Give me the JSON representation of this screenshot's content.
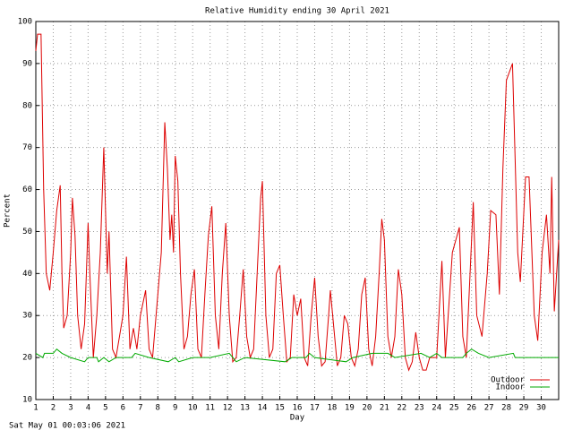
{
  "chart_data": {
    "type": "line",
    "title": "Relative Humidity ending 30 April 2021",
    "y_label": "Percent",
    "x_label": "Day",
    "footer": "Sat May 01 00:03:06 2021",
    "xlim": [
      1,
      31
    ],
    "xticks": [
      1,
      2,
      3,
      4,
      5,
      6,
      7,
      8,
      9,
      10,
      11,
      12,
      13,
      14,
      15,
      16,
      17,
      18,
      19,
      20,
      21,
      22,
      23,
      24,
      25,
      26,
      27,
      28,
      29,
      30
    ],
    "ylim": [
      10,
      100
    ],
    "yticks": [
      10,
      20,
      30,
      40,
      50,
      60,
      70,
      80,
      90,
      100
    ],
    "grid": true,
    "legend": "lower right",
    "series": [
      {
        "name": "Outdoor",
        "color": "#dd0000",
        "x": [
          1.0,
          1.1,
          1.3,
          1.45,
          1.6,
          1.8,
          2.0,
          2.2,
          2.4,
          2.5,
          2.6,
          2.8,
          3.0,
          3.1,
          3.25,
          3.4,
          3.6,
          3.8,
          4.0,
          4.1,
          4.3,
          4.5,
          4.7,
          4.9,
          5.1,
          5.2,
          5.4,
          5.6,
          5.8,
          6.0,
          6.2,
          6.4,
          6.6,
          6.8,
          7.0,
          7.3,
          7.5,
          7.7,
          7.9,
          8.2,
          8.4,
          8.55,
          8.7,
          8.8,
          8.9,
          9.0,
          9.15,
          9.3,
          9.5,
          9.7,
          9.9,
          10.1,
          10.3,
          10.5,
          10.7,
          10.9,
          11.1,
          11.3,
          11.5,
          11.7,
          11.9,
          12.1,
          12.3,
          12.5,
          12.7,
          12.9,
          13.1,
          13.3,
          13.5,
          13.7,
          13.9,
          14.0,
          14.2,
          14.4,
          14.6,
          14.8,
          15.0,
          15.2,
          15.4,
          15.6,
          15.8,
          16.0,
          16.2,
          16.4,
          16.6,
          16.8,
          17.0,
          17.2,
          17.4,
          17.6,
          17.8,
          17.9,
          18.1,
          18.3,
          18.5,
          18.7,
          18.9,
          19.1,
          19.3,
          19.5,
          19.7,
          19.9,
          20.1,
          20.3,
          20.5,
          20.7,
          20.85,
          21.0,
          21.2,
          21.4,
          21.6,
          21.8,
          22.0,
          22.2,
          22.4,
          22.6,
          22.8,
          23.0,
          23.2,
          23.4,
          23.6,
          24.0,
          24.3,
          24.5,
          24.9,
          25.3,
          25.5,
          25.7,
          26.1,
          26.3,
          26.6,
          26.9,
          27.1,
          27.4,
          27.6,
          27.8,
          28.0,
          28.35,
          28.65,
          28.8,
          29.1,
          29.3,
          29.6,
          29.8,
          30.05,
          30.3,
          30.5,
          30.6,
          30.75,
          31.0
        ],
        "values": [
          93,
          97,
          97,
          60,
          40,
          36,
          45,
          55,
          61,
          40,
          27,
          30,
          45,
          58,
          49,
          30,
          22,
          28,
          52,
          40,
          20,
          30,
          45,
          70,
          40,
          50,
          22,
          20,
          25,
          30,
          44,
          22,
          27,
          22,
          30,
          36,
          22,
          20,
          30,
          45,
          76,
          65,
          48,
          54,
          45,
          68,
          62,
          40,
          22,
          25,
          35,
          41,
          22,
          20,
          35,
          49,
          56,
          30,
          22,
          40,
          52,
          30,
          19,
          20,
          30,
          41,
          25,
          20,
          22,
          40,
          58,
          62,
          30,
          20,
          22,
          40,
          42,
          30,
          19,
          20,
          35,
          30,
          34,
          20,
          18,
          30,
          39,
          25,
          18,
          19,
          30,
          36,
          27,
          18,
          20,
          30,
          28,
          20,
          18,
          22,
          35,
          39,
          22,
          18,
          25,
          40,
          53,
          48,
          25,
          20,
          25,
          41,
          35,
          20,
          17,
          19,
          26,
          20,
          17,
          17,
          20,
          20,
          43,
          20,
          45,
          51,
          25,
          20,
          57,
          30,
          25,
          40,
          55,
          54,
          35,
          65,
          86,
          90,
          45,
          38,
          63,
          63,
          30,
          24,
          45,
          54,
          40,
          63,
          31,
          48
        ]
      },
      {
        "name": "Indoor",
        "color": "#00aa00",
        "x": [
          1.0,
          1.4,
          1.5,
          2.0,
          2.2,
          2.5,
          3.0,
          3.8,
          4.0,
          4.5,
          4.6,
          4.9,
          5.2,
          5.6,
          6.5,
          6.7,
          7.5,
          8.6,
          9.0,
          9.2,
          10.0,
          11.0,
          12.1,
          12.5,
          13.0,
          15.3,
          15.7,
          16.5,
          16.7,
          17.0,
          18.8,
          19.2,
          20.3,
          21.2,
          21.6,
          23.1,
          23.6,
          24.0,
          24.3,
          25.5,
          25.7,
          26.0,
          26.4,
          27.0,
          28.4,
          28.5,
          31.0
        ],
        "values": [
          21,
          20,
          21,
          21,
          22,
          21,
          20,
          19,
          20,
          20,
          19,
          20,
          19,
          20,
          20,
          21,
          20,
          19,
          20,
          19,
          20,
          20,
          21,
          19,
          20,
          19,
          20,
          20,
          21,
          20,
          19,
          20,
          21,
          21,
          20,
          21,
          20,
          21,
          20,
          20,
          21,
          22,
          21,
          20,
          21,
          20,
          20
        ]
      }
    ]
  }
}
